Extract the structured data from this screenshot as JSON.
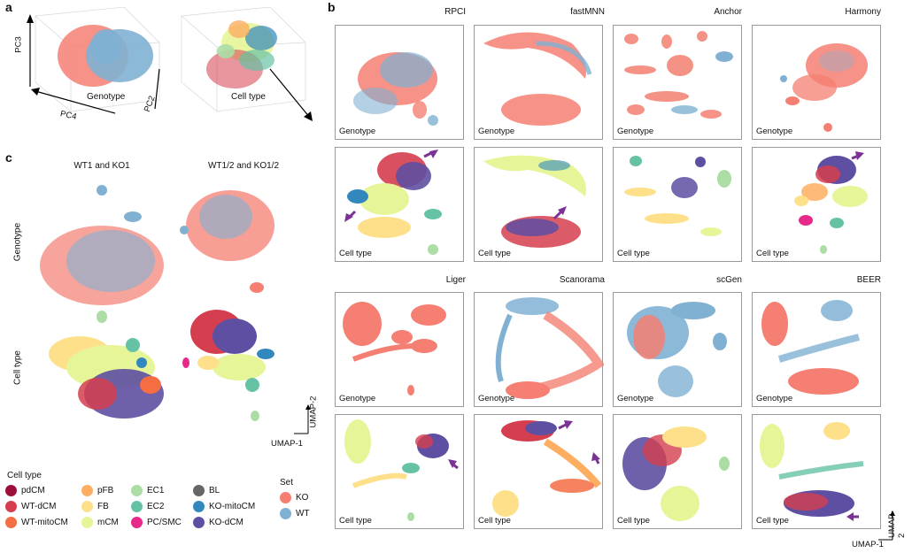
{
  "figure": {
    "panel_labels": {
      "a": "a",
      "b": "b",
      "c": "c"
    },
    "panel_a": {
      "left": {
        "title": "Genotype",
        "axis_x": "PC4",
        "axis_y": "PC3"
      },
      "right": {
        "title": "Cell type",
        "axis_z": "PC2"
      }
    },
    "panel_b": {
      "methods_row1": [
        "RPCI",
        "fastMNN",
        "Anchor",
        "Harmony"
      ],
      "methods_row2": [
        "Liger",
        "Scanorama",
        "scGen",
        "BEER"
      ],
      "genotype_label": "Genotype",
      "celltype_label": "Cell type",
      "umap_x": "UMAP-1",
      "umap_y": "UMAP-2"
    },
    "panel_c": {
      "col1": "WT1 and KO1",
      "col2": "WT1/2 and KO1/2",
      "row1": "Genotype",
      "row2": "Cell type",
      "umap_x": "UMAP-1",
      "umap_y": "UMAP-2"
    },
    "legend": {
      "title": "Cell type",
      "items": [
        {
          "label": "pdCM",
          "color": "#9e0e3a"
        },
        {
          "label": "WT-dCM",
          "color": "#d53e4f"
        },
        {
          "label": "WT-mitoCM",
          "color": "#f46d43"
        },
        {
          "label": "pFB",
          "color": "#fdae61"
        },
        {
          "label": "FB",
          "color": "#fee08b"
        },
        {
          "label": "mCM",
          "color": "#e6f598"
        },
        {
          "label": "EC1",
          "color": "#abdda4"
        },
        {
          "label": "EC2",
          "color": "#66c2a5"
        },
        {
          "label": "PC/SMC",
          "color": "#e7298a"
        },
        {
          "label": "BL",
          "color": "#666666"
        },
        {
          "label": "KO-mitoCM",
          "color": "#3288bd"
        },
        {
          "label": "KO-dCM",
          "color": "#5e4fa2"
        }
      ],
      "set_title": "Set",
      "set_items": [
        {
          "label": "KO",
          "color": "#f47f72"
        },
        {
          "label": "WT",
          "color": "#80b1d3"
        }
      ]
    }
  }
}
